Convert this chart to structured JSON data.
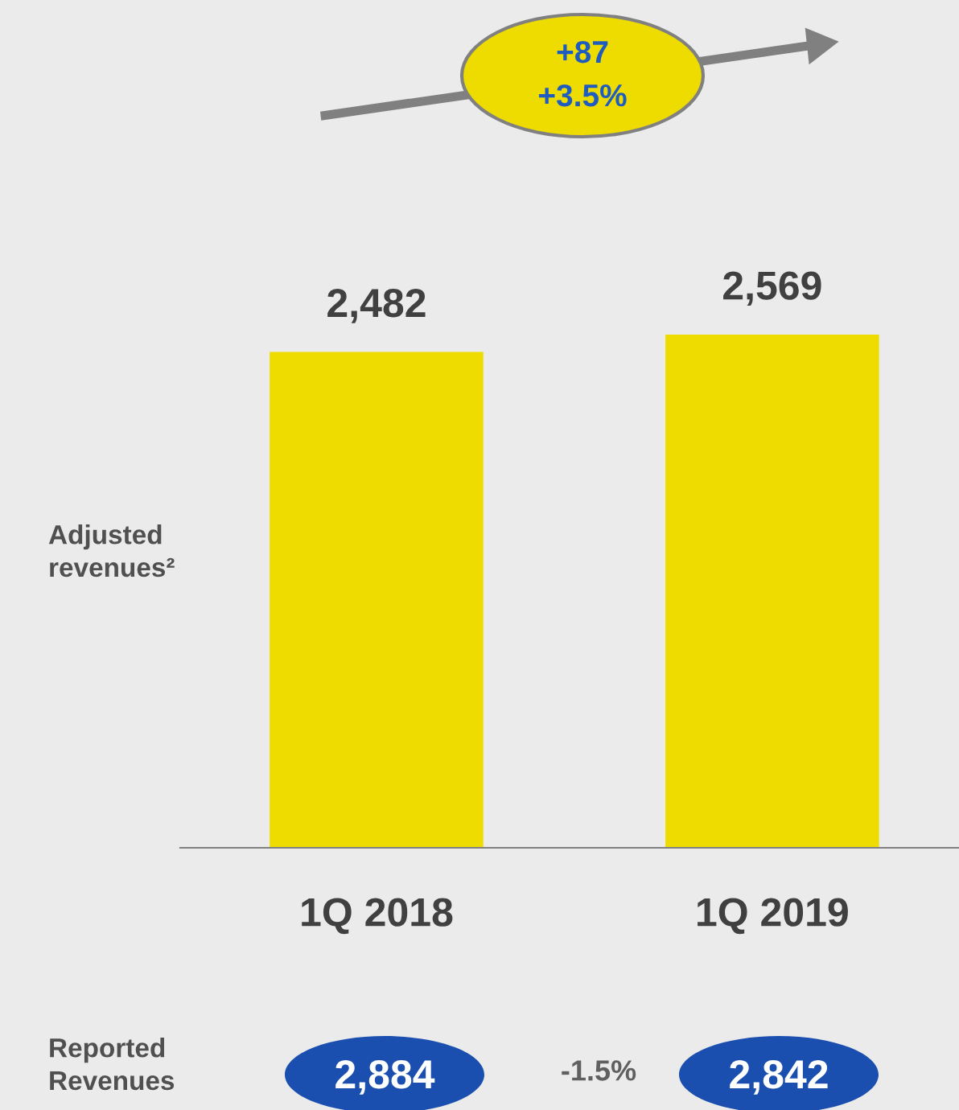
{
  "chart_data": {
    "type": "bar",
    "categories": [
      "1Q 2018",
      "1Q 2019"
    ],
    "values": [
      2482,
      2569
    ],
    "color": "#eedc00",
    "value_labels": [
      "2,482",
      "2,569"
    ],
    "grid": false,
    "annotations": [
      "+87",
      "+3.5%",
      "Adjusted revenues²",
      "Reported Revenues",
      "2,884",
      "-1.5%",
      "2,842"
    ]
  }
}
